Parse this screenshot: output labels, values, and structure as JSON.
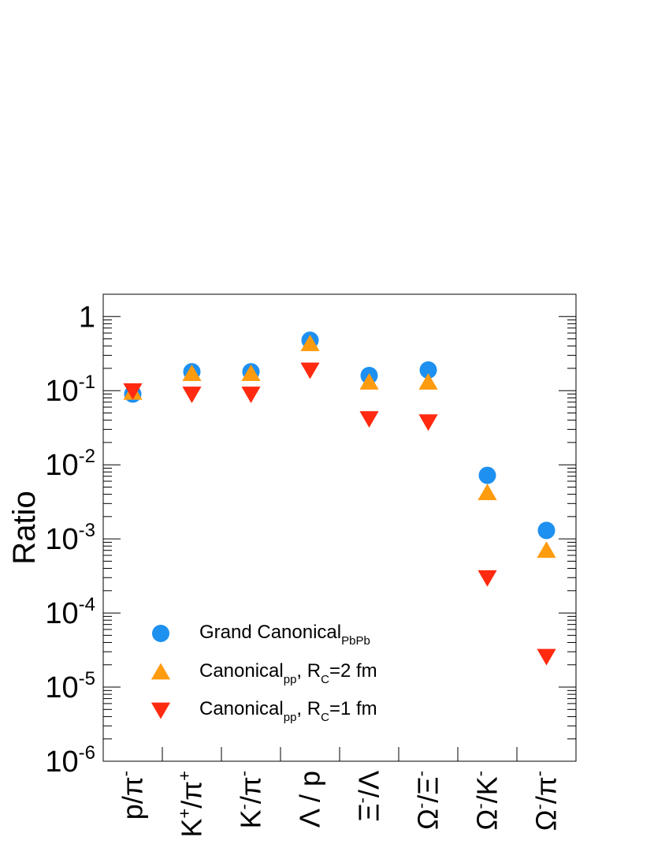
{
  "chart_data": {
    "type": "scatter",
    "ylabel": "Ratio",
    "yscale": "log",
    "ylim": [
      1e-06,
      2
    ],
    "y_ticks": [
      {
        "value": 1,
        "base": "1",
        "exp": ""
      },
      {
        "value": 0.1,
        "base": "10",
        "exp": "-1"
      },
      {
        "value": 0.01,
        "base": "10",
        "exp": "-2"
      },
      {
        "value": 0.001,
        "base": "10",
        "exp": "-3"
      },
      {
        "value": 0.0001,
        "base": "10",
        "exp": "-4"
      },
      {
        "value": 1e-05,
        "base": "10",
        "exp": "-5"
      },
      {
        "value": 1e-06,
        "base": "10",
        "exp": "-6"
      }
    ],
    "categories": [
      {
        "parts": [
          {
            "t": "p/π"
          },
          {
            "t": "-",
            "sup": true
          }
        ]
      },
      {
        "parts": [
          {
            "t": "K"
          },
          {
            "t": "+",
            "sup": true
          },
          {
            "t": "/π"
          },
          {
            "t": "+",
            "sup": true
          }
        ]
      },
      {
        "parts": [
          {
            "t": "K"
          },
          {
            "t": "-",
            "sup": true
          },
          {
            "t": "/π"
          },
          {
            "t": "-",
            "sup": true
          }
        ]
      },
      {
        "parts": [
          {
            "t": "Λ / p"
          }
        ]
      },
      {
        "parts": [
          {
            "t": "Ξ"
          },
          {
            "t": "-",
            "sup": true
          },
          {
            "t": "/Λ"
          }
        ]
      },
      {
        "parts": [
          {
            "t": "Ω"
          },
          {
            "t": "-",
            "sup": true
          },
          {
            "t": "/Ξ"
          },
          {
            "t": "-",
            "sup": true
          }
        ]
      },
      {
        "parts": [
          {
            "t": "Ω"
          },
          {
            "t": "-",
            "sup": true
          },
          {
            "t": "/K"
          },
          {
            "t": "-",
            "sup": true
          }
        ]
      },
      {
        "parts": [
          {
            "t": "Ω"
          },
          {
            "t": "-",
            "sup": true
          },
          {
            "t": "/π"
          },
          {
            "t": "-",
            "sup": true
          }
        ]
      }
    ],
    "series": [
      {
        "name": "Grand Canonical",
        "name_sub": "PbPb",
        "name_rest": "",
        "marker": "circle",
        "color": "#1e90f0",
        "values": [
          0.09,
          0.18,
          0.18,
          0.48,
          0.16,
          0.19,
          0.0072,
          0.0013
        ]
      },
      {
        "name": "Canonical",
        "name_sub": "pp",
        "name_rest": ", R",
        "name_rest_sub": "C",
        "name_end": "=2 fm",
        "marker": "triangle-up",
        "color": "#ff9b0f",
        "values": [
          0.095,
          0.17,
          0.17,
          0.43,
          0.13,
          0.13,
          0.0042,
          0.0007
        ]
      },
      {
        "name": "Canonical",
        "name_sub": "pp",
        "name_rest": ", R",
        "name_rest_sub": "C",
        "name_end": "=1 fm",
        "marker": "triangle-down",
        "color": "#ff2a10",
        "values": [
          0.1,
          0.09,
          0.09,
          0.19,
          0.042,
          0.038,
          0.0003,
          2.6e-05
        ]
      }
    ],
    "legend_position": "bottom-left"
  }
}
